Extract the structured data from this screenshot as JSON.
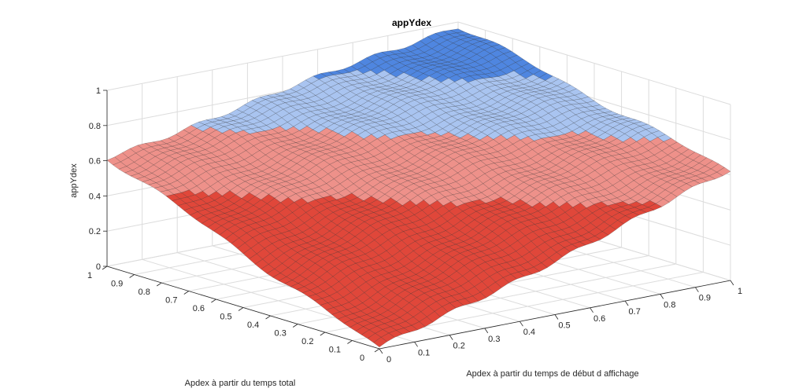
{
  "chart_data": {
    "type": "surface",
    "title": "appYdex",
    "xlabel": "Apdex à partir du temps de début d affichage",
    "ylabel": "Apdex à partir du temps total",
    "zlabel": "appYdex",
    "xlim": [
      0,
      1
    ],
    "ylim": [
      0,
      1
    ],
    "zlim": [
      0,
      1
    ],
    "x_ticks": [
      "0",
      "0.1",
      "0.2",
      "0.3",
      "0.4",
      "0.5",
      "0.6",
      "0.7",
      "0.8",
      "0.9",
      "1"
    ],
    "y_ticks": [
      "0",
      "0.1",
      "0.2",
      "0.3",
      "0.4",
      "0.5",
      "0.6",
      "0.7",
      "0.8",
      "0.9",
      "1"
    ],
    "z_ticks": [
      "0",
      "0.2",
      "0.4",
      "0.6",
      "0.8",
      "1"
    ],
    "grid": true,
    "surface_samples": {
      "corners": {
        "x0_y0": 0.0,
        "x1_y0": 0.62,
        "x0_y1": 0.62,
        "x1_y1": 0.98
      },
      "description_of_function": "approximately (x + y) weighted, rising from 0 at (0,0) to ~1 at (1,1)"
    },
    "color_bands": [
      {
        "range": [
          0,
          0.5
        ],
        "color": "#e0473a"
      },
      {
        "range": [
          0.5,
          0.7
        ],
        "color": "#ee918a"
      },
      {
        "range": [
          0.7,
          0.85
        ],
        "color": "#a9c4f0"
      },
      {
        "range": [
          0.85,
          1.0
        ],
        "color": "#4f86e0"
      }
    ]
  }
}
